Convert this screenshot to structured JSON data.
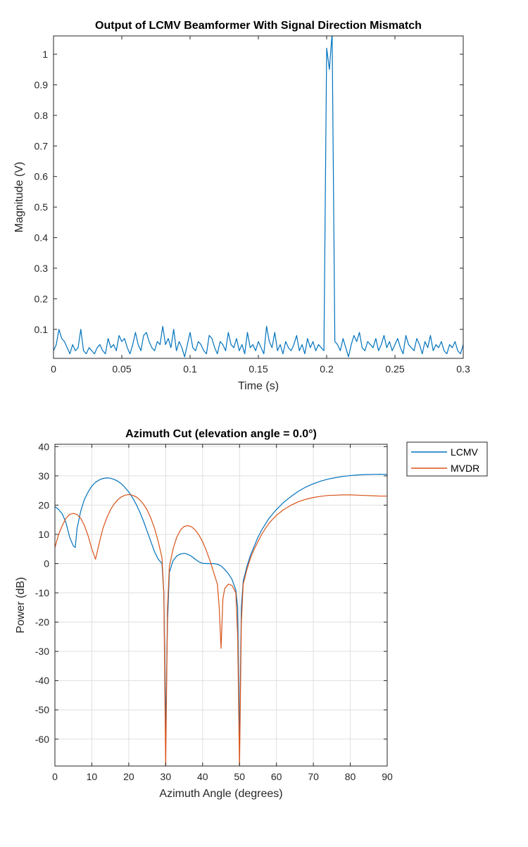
{
  "chart_data": [
    {
      "type": "line",
      "title": "Output of LCMV Beamformer With Signal Direction Mismatch",
      "xlabel": "Time (s)",
      "ylabel": "Magnitude (V)",
      "xlim": [
        0,
        0.3
      ],
      "ylim": [
        0.005,
        1.06
      ],
      "xticks": [
        0,
        0.05,
        0.1,
        0.15,
        0.2,
        0.25,
        0.3
      ],
      "xtick_labels": [
        "0",
        "0.05",
        "0.1",
        "0.15",
        "0.2",
        "0.25",
        "0.3"
      ],
      "yticks": [
        0.1,
        0.2,
        0.3,
        0.4,
        0.5,
        0.6,
        0.7,
        0.8,
        0.9,
        1
      ],
      "ytick_labels": [
        "0.1",
        "0.2",
        "0.3",
        "0.4",
        "0.5",
        "0.6",
        "0.7",
        "0.8",
        "0.9",
        "1"
      ],
      "grid": false,
      "series": [
        {
          "color": "#0072BD",
          "t0": 0,
          "dt": 0.002,
          "y": [
            0.03,
            0.05,
            0.1,
            0.07,
            0.06,
            0.04,
            0.02,
            0.05,
            0.03,
            0.04,
            0.1,
            0.03,
            0.02,
            0.04,
            0.03,
            0.02,
            0.04,
            0.05,
            0.03,
            0.02,
            0.07,
            0.04,
            0.05,
            0.03,
            0.08,
            0.06,
            0.07,
            0.04,
            0.02,
            0.05,
            0.09,
            0.05,
            0.03,
            0.08,
            0.09,
            0.06,
            0.04,
            0.03,
            0.06,
            0.05,
            0.11,
            0.05,
            0.07,
            0.04,
            0.1,
            0.03,
            0.06,
            0.04,
            0.01,
            0.05,
            0.09,
            0.04,
            0.03,
            0.06,
            0.05,
            0.03,
            0.02,
            0.08,
            0.07,
            0.04,
            0.02,
            0.06,
            0.05,
            0.03,
            0.09,
            0.05,
            0.04,
            0.07,
            0.03,
            0.05,
            0.02,
            0.09,
            0.04,
            0.05,
            0.03,
            0.06,
            0.04,
            0.02,
            0.11,
            0.06,
            0.04,
            0.09,
            0.03,
            0.05,
            0.02,
            0.06,
            0.04,
            0.03,
            0.05,
            0.08,
            0.03,
            0.05,
            0.02,
            0.07,
            0.04,
            0.06,
            0.03,
            0.05,
            0.04,
            0.03,
            1.02,
            0.95,
            1.07,
            0.06,
            0.05,
            0.03,
            0.07,
            0.04,
            0.01,
            0.05,
            0.08,
            0.06,
            0.09,
            0.04,
            0.03,
            0.06,
            0.05,
            0.04,
            0.07,
            0.03,
            0.05,
            0.08,
            0.04,
            0.06,
            0.03,
            0.05,
            0.07,
            0.04,
            0.02,
            0.08,
            0.05,
            0.04,
            0.03,
            0.07,
            0.05,
            0.02,
            0.06,
            0.04,
            0.08,
            0.03,
            0.05,
            0.04,
            0.06,
            0.03,
            0.02,
            0.05,
            0.04,
            0.06,
            0.03,
            0.02,
            0.05
          ]
        }
      ]
    },
    {
      "type": "line",
      "title": "Azimuth Cut (elevation angle = 0.0°)",
      "xlabel": "Azimuth Angle (degrees)",
      "ylabel": "Power (dB)",
      "xlim": [
        0,
        90
      ],
      "ylim": [
        -69.2,
        40.8
      ],
      "xticks": [
        0,
        10,
        20,
        30,
        40,
        50,
        60,
        70,
        80,
        90
      ],
      "xtick_labels": [
        "0",
        "10",
        "20",
        "30",
        "40",
        "50",
        "60",
        "70",
        "80",
        "90"
      ],
      "yticks": [
        40,
        30,
        20,
        10,
        0,
        -10,
        -20,
        -30,
        -40,
        -50,
        -60
      ],
      "ytick_labels": [
        "40",
        "30",
        "20",
        "10",
        "0",
        "-10",
        "-20",
        "-30",
        "-40",
        "-50",
        "-60"
      ],
      "grid": true,
      "legend_position": "outside-top-right",
      "series": [
        {
          "name": "LCMV",
          "color": "#0072BD",
          "x": [
            0,
            1,
            2,
            3,
            4,
            5,
            5.5,
            6,
            7,
            8,
            9,
            10,
            11,
            12,
            13,
            14,
            15,
            16,
            17,
            18,
            19,
            20,
            21,
            22,
            23,
            24,
            25,
            26,
            27,
            28,
            29,
            29.5,
            30,
            30.5,
            31,
            32,
            33,
            34,
            35,
            36,
            37,
            38,
            39,
            40,
            41,
            42,
            43,
            44,
            45,
            46,
            47,
            48,
            49,
            49.5,
            50,
            50.5,
            51,
            52,
            53,
            54,
            55,
            56,
            57,
            58,
            59,
            60,
            62,
            64,
            66,
            68,
            70,
            72,
            74,
            76,
            78,
            80,
            82,
            84,
            86,
            88,
            90
          ],
          "y": [
            19.5,
            18.5,
            17,
            14,
            9,
            6,
            5.5,
            12,
            18,
            22,
            24.5,
            26.5,
            27.8,
            28.6,
            29.1,
            29.3,
            29.2,
            28.8,
            28.2,
            27.3,
            26,
            24.5,
            22.6,
            20.3,
            17.6,
            14.5,
            11,
            7.5,
            4,
            1.5,
            0,
            -10,
            -57,
            -20,
            -3,
            1,
            2.6,
            3.3,
            3.5,
            3.2,
            2.5,
            1.5,
            0.6,
            0.1,
            0,
            0,
            0,
            -0.2,
            -0.8,
            -2,
            -3.5,
            -5.5,
            -9,
            -15,
            -63,
            -15,
            -6,
            -1,
            3,
            6,
            9,
            11.5,
            13.5,
            15.5,
            17,
            18.5,
            21,
            23,
            24.8,
            26.2,
            27.3,
            28.2,
            28.9,
            29.4,
            29.8,
            30.1,
            30.3,
            30.45,
            30.5,
            30.55,
            30.5
          ]
        },
        {
          "name": "MVDR",
          "color": "#D95319",
          "x": [
            0,
            1,
            2,
            3,
            4,
            5,
            6,
            7,
            8,
            9,
            10,
            11,
            12,
            13,
            14,
            15,
            16,
            17,
            18,
            19,
            20,
            21,
            22,
            23,
            24,
            25,
            26,
            27,
            28,
            29,
            29.5,
            30,
            30.5,
            31,
            32,
            33,
            34,
            35,
            36,
            37,
            38,
            39,
            40,
            41,
            42,
            43,
            44,
            44.5,
            45,
            45.5,
            46,
            47,
            48,
            49,
            49.5,
            50,
            50.5,
            51,
            52,
            53,
            54,
            55,
            56,
            57,
            58,
            59,
            60,
            62,
            64,
            66,
            68,
            70,
            72,
            74,
            76,
            78,
            80,
            82,
            84,
            86,
            88,
            90
          ],
          "y": [
            5.5,
            10,
            13,
            15.5,
            16.8,
            17.2,
            16.8,
            15.5,
            13,
            9.5,
            5,
            1.5,
            7,
            12,
            15.5,
            18.3,
            20.3,
            21.8,
            22.8,
            23.4,
            23.6,
            23.4,
            22.8,
            21.8,
            20.3,
            18.3,
            15.5,
            12,
            7.5,
            2,
            -10,
            -70,
            -15,
            -1,
            5,
            9,
            11.5,
            12.7,
            13,
            12.6,
            11.5,
            9.8,
            7.5,
            4.5,
            1,
            -3,
            -7,
            -15,
            -29,
            -12,
            -8.5,
            -7,
            -7.5,
            -10,
            -25,
            -70,
            -20,
            -7,
            -2,
            2,
            5,
            7.5,
            10,
            12,
            13.8,
            15.2,
            16.5,
            18.5,
            20,
            21.2,
            22,
            22.6,
            23,
            23.3,
            23.4,
            23.5,
            23.5,
            23.4,
            23.3,
            23.2,
            23.1,
            23.1
          ]
        }
      ]
    }
  ]
}
